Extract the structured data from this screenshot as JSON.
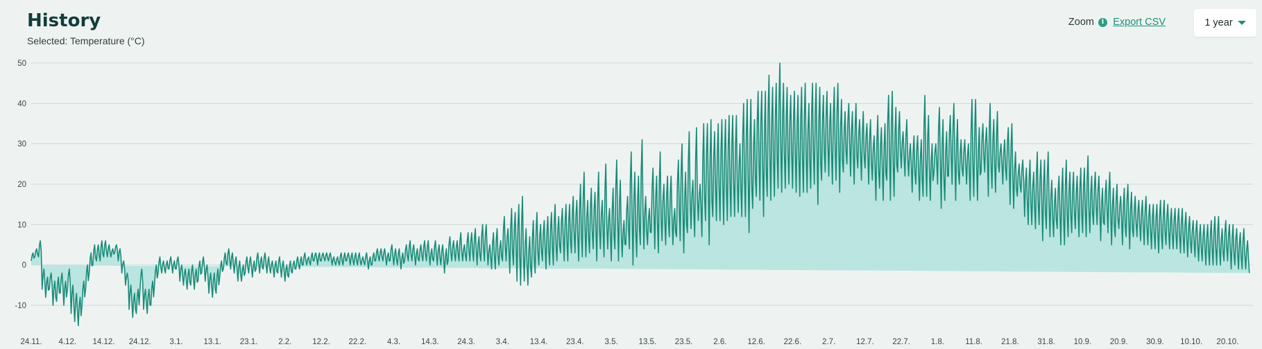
{
  "header": {
    "title": "History",
    "selected_label": "Selected: Temperature (°C)",
    "zoom_label": "Zoom",
    "info_icon": "i",
    "export_label": "Export CSV",
    "range_value": "1 year"
  },
  "colors": {
    "line": "#188b77",
    "area": "#b7e4de",
    "grid": "#cfd9d8",
    "accent": "#1f8f78"
  },
  "chart_data": {
    "type": "area",
    "title": "",
    "xlabel": "",
    "ylabel": "",
    "ylim": [
      -10,
      50
    ],
    "y_ticks": [
      50,
      40,
      30,
      20,
      10,
      0,
      -10
    ],
    "grid": true,
    "x_tick_labels": [
      "24.11.",
      "4.12.",
      "14.12.",
      "24.12.",
      "3.1.",
      "13.1.",
      "23.1.",
      "2.2.",
      "12.2.",
      "22.2.",
      "4.3.",
      "14.3.",
      "24.3.",
      "3.4.",
      "13.4.",
      "23.4.",
      "3.5.",
      "13.5.",
      "23.5.",
      "2.6.",
      "12.6.",
      "22.6.",
      "2.7.",
      "12.7.",
      "22.7.",
      "1.8.",
      "11.8.",
      "21.8.",
      "31.8.",
      "10.9.",
      "20.9.",
      "30.9.",
      "10.10.",
      "20.10."
    ],
    "x_range_days": [
      0,
      337
    ],
    "series": [
      {
        "daily_min": [
          1,
          2,
          2,
          -6,
          -8,
          -6,
          -10,
          -9,
          -7,
          -10,
          -6,
          -12,
          -14,
          -15,
          -10,
          -6,
          -2,
          0,
          1,
          1,
          2,
          2,
          2,
          3,
          1,
          -2,
          -5,
          -11,
          -13,
          -12,
          -6,
          -11,
          -12,
          -10,
          -5,
          -2,
          -2,
          -2,
          -1,
          -2,
          -1,
          -4,
          -5,
          -6,
          -5,
          -6,
          -4,
          -2,
          -4,
          -7,
          -8,
          -7,
          -3,
          -1,
          0,
          -1,
          -2,
          -4,
          -4,
          -2,
          -2,
          -3,
          -1,
          -2,
          -1,
          -2,
          -2,
          -3,
          -2,
          -3,
          -4,
          -3,
          -2,
          -1,
          -1,
          0,
          0,
          0,
          1,
          0,
          1,
          1,
          1,
          0,
          0,
          0,
          0,
          1,
          0,
          0,
          0,
          0,
          0,
          -1,
          0,
          1,
          1,
          1,
          0,
          1,
          0,
          0,
          -1,
          1,
          1,
          1,
          0,
          1,
          1,
          1,
          0,
          1,
          0,
          0,
          -2,
          1,
          1,
          1,
          1,
          1,
          1,
          1,
          1,
          0,
          1,
          1,
          0,
          -1,
          -1,
          0,
          1,
          1,
          -2,
          0,
          -4,
          -5,
          -4,
          -5,
          -3,
          -2,
          0,
          1,
          -1,
          0,
          0,
          1,
          3,
          1,
          1,
          3,
          3,
          1,
          2,
          2,
          3,
          4,
          1,
          4,
          2,
          4,
          1,
          4,
          1,
          2,
          5,
          4,
          0,
          2,
          5,
          4,
          5,
          8,
          4,
          3,
          6,
          5,
          7,
          5,
          7,
          6,
          3,
          8,
          9,
          7,
          11,
          7,
          11,
          5,
          12,
          11,
          11,
          10,
          11,
          12,
          12,
          13,
          12,
          12,
          8,
          14,
          17,
          16,
          12,
          17,
          16,
          17,
          19,
          18,
          19,
          20,
          19,
          18,
          17,
          18,
          18,
          19,
          20,
          15,
          21,
          23,
          22,
          20,
          21,
          18,
          23,
          25,
          22,
          20,
          24,
          21,
          24,
          20,
          21,
          16,
          19,
          16,
          21,
          16,
          17,
          23,
          24,
          22,
          22,
          18,
          20,
          16,
          17,
          17,
          16,
          23,
          20,
          14,
          16,
          22,
          20,
          16,
          20,
          22,
          20,
          16,
          17,
          16,
          23,
          23,
          17,
          19,
          18,
          23,
          20,
          21,
          15,
          14,
          17,
          18,
          12,
          10,
          10,
          9,
          10,
          6,
          9,
          7,
          7,
          9,
          5,
          5,
          7,
          8,
          9,
          7,
          8,
          7,
          8,
          10,
          10,
          6,
          10,
          8,
          5,
          7,
          9,
          5,
          7,
          4,
          7,
          7,
          6,
          5,
          5,
          4,
          4,
          3,
          4,
          5,
          4,
          4,
          4,
          3,
          3,
          2,
          3,
          2,
          1,
          1,
          0,
          0,
          0,
          0,
          0,
          1,
          1,
          -1,
          0,
          -1,
          -1,
          -1,
          -2,
          -1,
          -2
        ],
        "daily_max": [
          3,
          4,
          6,
          -1,
          -3,
          -2,
          -4,
          -3,
          -2,
          -4,
          -1,
          -5,
          -7,
          -8,
          -4,
          0,
          3,
          5,
          5,
          6,
          6,
          5,
          4,
          5,
          4,
          1,
          -2,
          -5,
          -7,
          -6,
          -1,
          -6,
          -6,
          -4,
          0,
          2,
          1,
          1,
          2,
          1,
          2,
          0,
          -1,
          -1,
          0,
          -1,
          1,
          2,
          0,
          -2,
          -2,
          -1,
          1,
          3,
          4,
          3,
          2,
          1,
          0,
          2,
          2,
          1,
          3,
          2,
          3,
          2,
          1,
          1,
          2,
          1,
          0,
          1,
          1,
          2,
          2,
          3,
          2,
          3,
          3,
          3,
          3,
          3,
          3,
          2,
          2,
          3,
          3,
          3,
          3,
          3,
          3,
          2,
          3,
          2,
          3,
          4,
          4,
          4,
          3,
          5,
          4,
          4,
          3,
          5,
          6,
          5,
          4,
          5,
          6,
          6,
          4,
          6,
          5,
          5,
          4,
          7,
          6,
          6,
          8,
          5,
          8,
          8,
          9,
          7,
          10,
          10,
          5,
          8,
          9,
          6,
          12,
          9,
          14,
          13,
          15,
          17,
          9,
          7,
          11,
          13,
          10,
          11,
          12,
          13,
          15,
          12,
          14,
          15,
          15,
          17,
          16,
          20,
          23,
          16,
          19,
          18,
          23,
          16,
          25,
          14,
          19,
          26,
          21,
          11,
          17,
          28,
          23,
          22,
          31,
          17,
          14,
          24,
          22,
          28,
          20,
          22,
          22,
          14,
          26,
          30,
          23,
          33,
          21,
          34,
          20,
          35,
          35,
          36,
          33,
          35,
          36,
          36,
          37,
          37,
          37,
          30,
          40,
          41,
          41,
          36,
          43,
          43,
          43,
          47,
          44,
          45,
          50,
          45,
          44,
          42,
          43,
          42,
          44,
          45,
          40,
          45,
          45,
          44,
          42,
          43,
          40,
          44,
          45,
          41,
          38,
          40,
          38,
          40,
          36,
          38,
          35,
          36,
          32,
          37,
          34,
          35,
          42,
          43,
          39,
          38,
          33,
          36,
          30,
          32,
          32,
          31,
          42,
          37,
          30,
          30,
          39,
          36,
          33,
          37,
          40,
          36,
          31,
          31,
          30,
          41,
          41,
          34,
          35,
          34,
          40,
          36,
          38,
          30,
          31,
          34,
          35,
          28,
          25,
          26,
          24,
          26,
          23,
          28,
          26,
          26,
          28,
          21,
          19,
          22,
          24,
          26,
          23,
          23,
          22,
          24,
          24,
          27,
          22,
          23,
          22,
          19,
          21,
          23,
          19,
          20,
          17,
          19,
          20,
          18,
          17,
          16,
          16,
          17,
          15,
          15,
          15,
          16,
          16,
          15,
          14,
          14,
          14,
          14,
          13,
          12,
          11,
          11,
          10,
          10,
          10,
          11,
          12,
          12,
          9,
          11,
          10,
          10,
          9,
          8,
          9,
          6
        ]
      }
    ]
  }
}
